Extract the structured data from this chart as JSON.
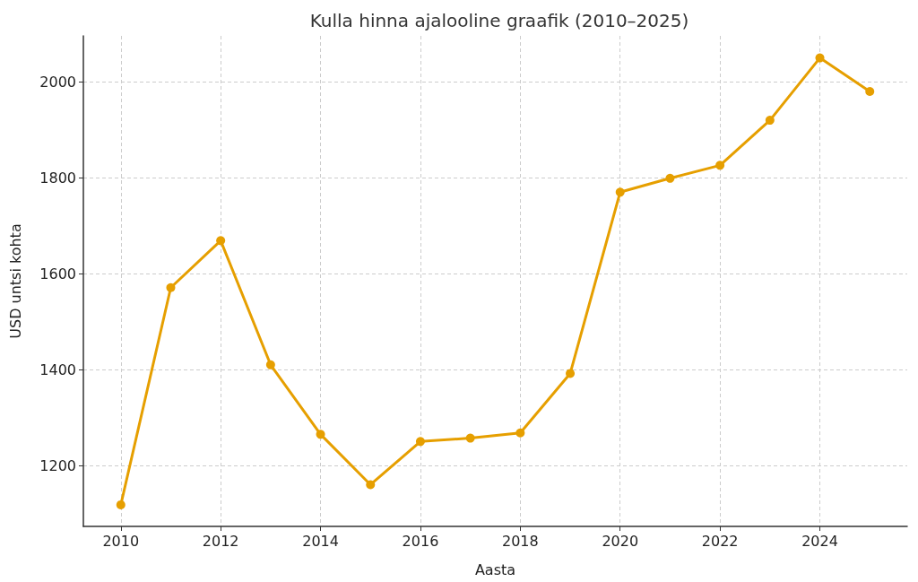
{
  "chart_data": {
    "type": "line",
    "title": "Kulla hinna ajalooline graafik (2010–2025)",
    "xlabel": "Aasta",
    "ylabel": "USD untsi kohta",
    "x": [
      2010,
      2011,
      2012,
      2013,
      2014,
      2015,
      2016,
      2017,
      2018,
      2019,
      2020,
      2021,
      2022,
      2023,
      2024,
      2025
    ],
    "series": [
      {
        "color": "#e69f00",
        "values": [
          1118,
          1571,
          1669,
          1410,
          1265,
          1160,
          1250,
          1257,
          1268,
          1392,
          1770,
          1799,
          1826,
          1920,
          2050,
          1980
        ]
      }
    ],
    "xlim": [
      2009.25,
      2025.75
    ],
    "xticks": [
      2010,
      2012,
      2014,
      2016,
      2018,
      2020,
      2022,
      2024
    ],
    "ylim": [
      1073,
      2096
    ],
    "yticks": [
      1200,
      1400,
      1600,
      1800,
      2000
    ],
    "grid": true,
    "marker": "circle",
    "line_style": "solid"
  }
}
